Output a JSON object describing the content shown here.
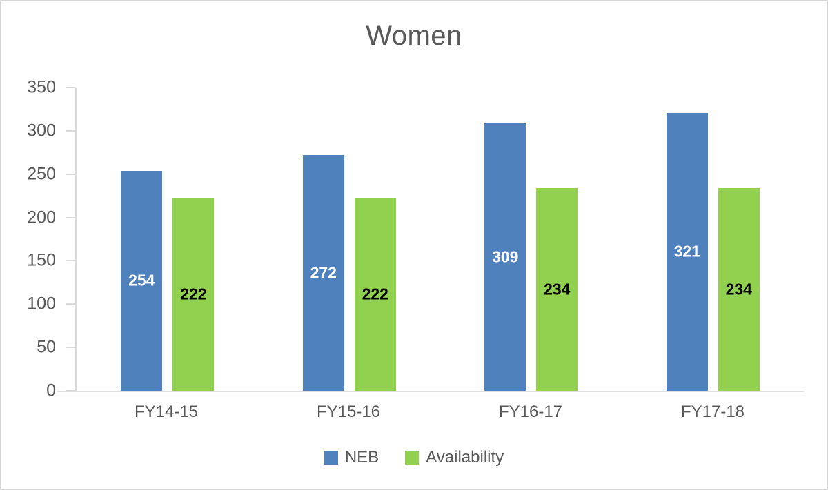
{
  "title": "Women",
  "colors": {
    "neb_blue": "#4f81bd",
    "availability_green": "#92d050",
    "title_text": "#595959",
    "axis_text": "#595959",
    "axis_line": "#d9d9d9",
    "frame_border": "#d4d4d4",
    "label_on_neb": "#ffffff",
    "label_on_availability": "#000000"
  },
  "chart_data": {
    "type": "bar",
    "title": "Women",
    "categories": [
      "FY14-15",
      "FY15-16",
      "FY16-17",
      "FY17-18"
    ],
    "series": [
      {
        "name": "NEB",
        "color": "#4f81bd",
        "label_color": "#ffffff",
        "values": [
          254,
          272,
          309,
          321
        ]
      },
      {
        "name": "Availability",
        "color": "#92d050",
        "label_color": "#000000",
        "values": [
          222,
          222,
          234,
          234
        ]
      }
    ],
    "ylim": [
      0,
      350
    ],
    "yticks": [
      0,
      50,
      100,
      150,
      200,
      250,
      300,
      350
    ],
    "grid": false,
    "data_labels": "center",
    "legend_position": "bottom"
  }
}
